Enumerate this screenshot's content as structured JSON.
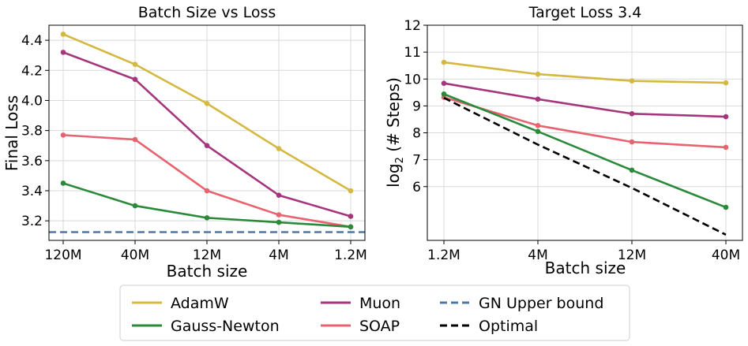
{
  "colors": {
    "adamw": "#d4b840",
    "muon": "#a5357c",
    "soap": "#e8636f",
    "gauss_newton": "#2a8a3a",
    "gn_bound": "#4a78a8",
    "optimal": "#000000",
    "grid": "#d8d8d8"
  },
  "legend": {
    "adamw": "AdamW",
    "gauss_newton": "Gauss-Newton",
    "muon": "Muon",
    "soap": "SOAP",
    "gn_bound": "GN Upper bound",
    "optimal": "Optimal"
  },
  "chart_data": [
    {
      "type": "line",
      "title": "Batch Size vs Loss",
      "xlabel": "Batch size",
      "ylabel": "Final Loss",
      "categories": [
        "120M",
        "40M",
        "12M",
        "4M",
        "1.2M"
      ],
      "ylim": [
        3.07,
        4.5
      ],
      "yticks": [
        "3.2",
        "3.4",
        "3.6",
        "3.8",
        "4.0",
        "4.2",
        "4.4"
      ],
      "grid": true,
      "series": [
        {
          "key": "adamw",
          "name": "AdamW",
          "values": [
            4.44,
            4.24,
            3.98,
            3.68,
            3.4
          ]
        },
        {
          "key": "muon",
          "name": "Muon",
          "values": [
            4.32,
            4.14,
            3.7,
            3.37,
            3.23
          ]
        },
        {
          "key": "soap",
          "name": "SOAP",
          "values": [
            3.77,
            3.74,
            3.4,
            3.24,
            3.16
          ]
        },
        {
          "key": "gauss_newton",
          "name": "Gauss-Newton",
          "values": [
            3.45,
            3.3,
            3.22,
            3.19,
            3.16
          ]
        }
      ],
      "hlines": [
        {
          "key": "gn_bound",
          "name": "GN Upper bound",
          "value": 3.125,
          "style": "dashed"
        }
      ]
    },
    {
      "type": "line",
      "title": "Target Loss 3.4",
      "xlabel": "Batch size",
      "ylabel": "log2 (# Steps)",
      "ylabel_base": "log",
      "ylabel_sub": "2",
      "ylabel_rest": " (# Steps)",
      "categories": [
        "1.2M",
        "4M",
        "12M",
        "40M"
      ],
      "ylim": [
        4.0,
        12.0
      ],
      "yticks": [
        "6",
        "7",
        "8",
        "9",
        "10",
        "11",
        "12"
      ],
      "grid": true,
      "series": [
        {
          "key": "adamw",
          "name": "AdamW",
          "values": [
            10.62,
            10.18,
            9.93,
            9.86
          ]
        },
        {
          "key": "muon",
          "name": "Muon",
          "values": [
            9.84,
            9.25,
            8.71,
            8.6
          ]
        },
        {
          "key": "soap",
          "name": "SOAP",
          "values": [
            9.32,
            8.27,
            7.66,
            7.46
          ]
        },
        {
          "key": "gauss_newton",
          "name": "Gauss-Newton",
          "values": [
            9.44,
            8.05,
            6.61,
            5.23
          ]
        },
        {
          "key": "optimal",
          "name": "Optimal",
          "values": [
            9.3,
            7.56,
            5.95,
            4.21
          ],
          "style": "dashed",
          "markers": false
        }
      ]
    }
  ]
}
